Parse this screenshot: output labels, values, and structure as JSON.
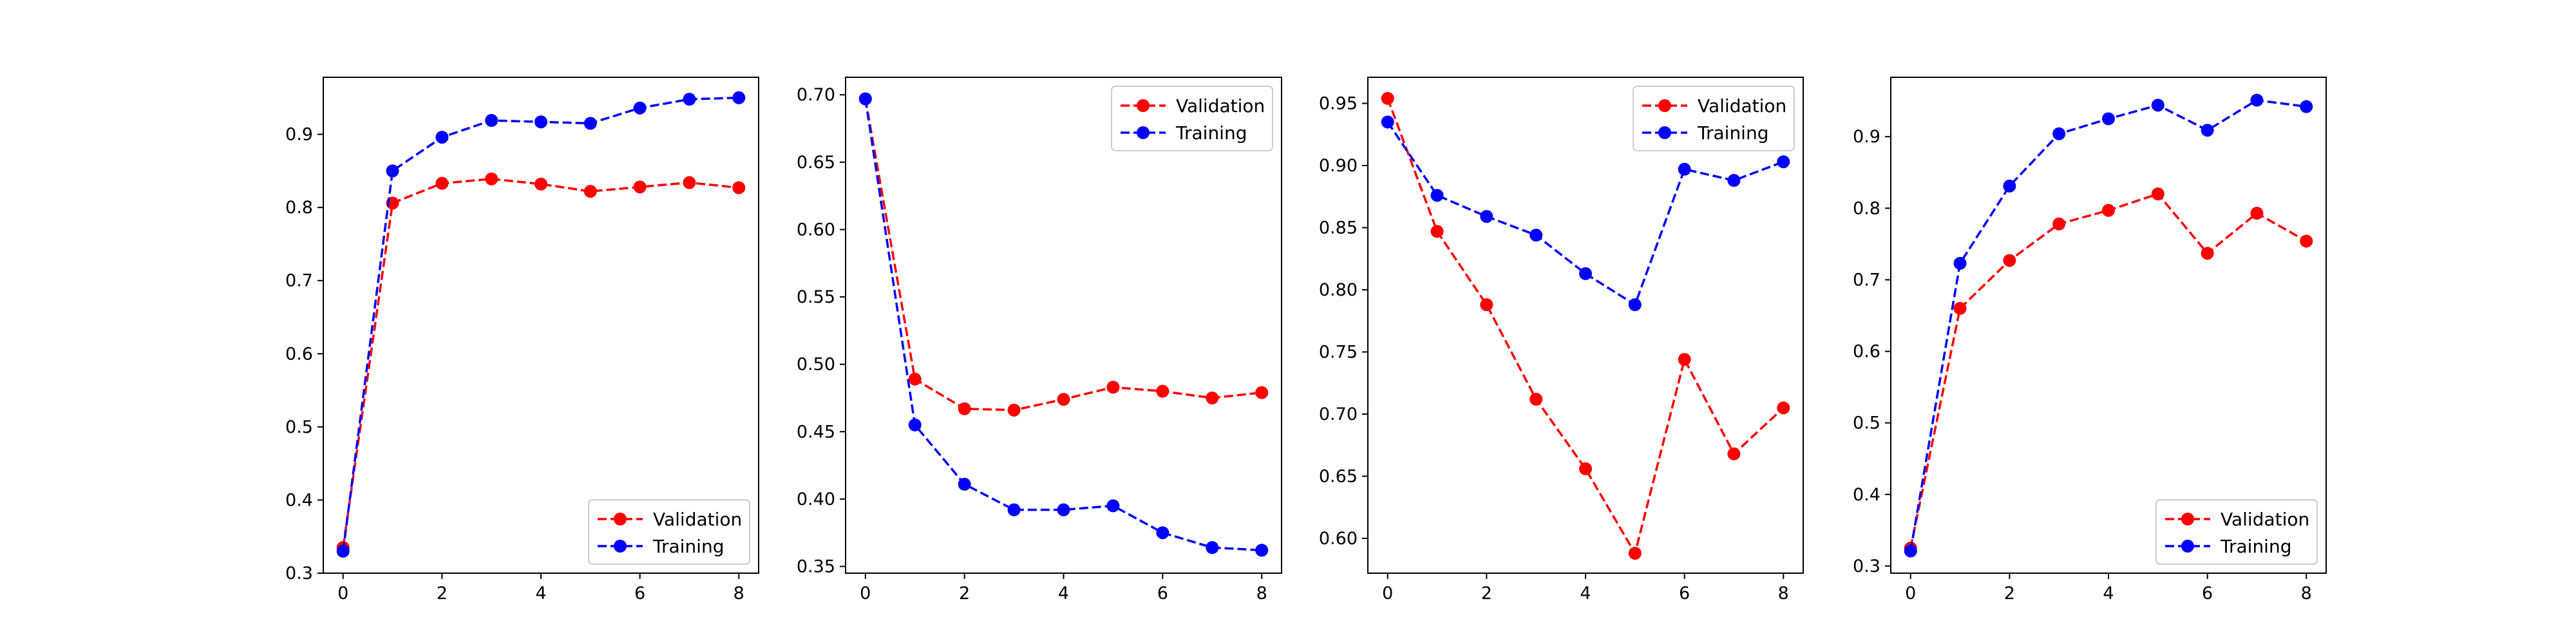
{
  "colors": {
    "validation": "#ff0000",
    "training": "#0000ff",
    "axis": "#000000",
    "background": "#ffffff"
  },
  "chart_data": [
    {
      "type": "line",
      "x": [
        0,
        1,
        2,
        3,
        4,
        5,
        6,
        7,
        8
      ],
      "xlim": [
        -0.4,
        8.4
      ],
      "ylim": [
        0.3,
        0.978
      ],
      "xticks": [
        0,
        2,
        4,
        6,
        8
      ],
      "yticks": [
        0.3,
        0.4,
        0.5,
        0.6,
        0.7,
        0.8,
        0.9
      ],
      "ytick_labels": [
        "0.3",
        "0.4",
        "0.5",
        "0.6",
        "0.7",
        "0.8",
        "0.9"
      ],
      "legend_position": "lower-right",
      "series": [
        {
          "name": "Validation",
          "color": "#ff0000",
          "values": [
            0.335,
            0.806,
            0.833,
            0.839,
            0.832,
            0.822,
            0.828,
            0.834,
            0.827
          ]
        },
        {
          "name": "Training",
          "color": "#0000ff",
          "values": [
            0.33,
            0.85,
            0.896,
            0.919,
            0.917,
            0.915,
            0.936,
            0.948,
            0.95
          ]
        }
      ]
    },
    {
      "type": "line",
      "x": [
        0,
        1,
        2,
        3,
        4,
        5,
        6,
        7,
        8
      ],
      "xlim": [
        -0.4,
        8.4
      ],
      "ylim": [
        0.345,
        0.713
      ],
      "xticks": [
        0,
        2,
        4,
        6,
        8
      ],
      "yticks": [
        0.35,
        0.4,
        0.45,
        0.5,
        0.55,
        0.6,
        0.65,
        0.7
      ],
      "ytick_labels": [
        "0.35",
        "0.40",
        "0.45",
        "0.50",
        "0.55",
        "0.60",
        "0.65",
        "0.70"
      ],
      "legend_position": "upper-right",
      "series": [
        {
          "name": "Validation",
          "color": "#ff0000",
          "values": [
            0.697,
            0.489,
            0.467,
            0.466,
            0.474,
            0.483,
            0.48,
            0.475,
            0.479
          ]
        },
        {
          "name": "Training",
          "color": "#0000ff",
          "values": [
            0.697,
            0.455,
            0.411,
            0.392,
            0.392,
            0.395,
            0.375,
            0.364,
            0.362
          ]
        }
      ]
    },
    {
      "type": "line",
      "x": [
        0,
        1,
        2,
        3,
        4,
        5,
        6,
        7,
        8
      ],
      "xlim": [
        -0.4,
        8.4
      ],
      "ylim": [
        0.572,
        0.971
      ],
      "xticks": [
        0,
        2,
        4,
        6,
        8
      ],
      "yticks": [
        0.6,
        0.65,
        0.7,
        0.75,
        0.8,
        0.85,
        0.9,
        0.95
      ],
      "ytick_labels": [
        "0.60",
        "0.65",
        "0.70",
        "0.75",
        "0.80",
        "0.85",
        "0.90",
        "0.95"
      ],
      "legend_position": "upper-right",
      "series": [
        {
          "name": "Validation",
          "color": "#ff0000",
          "values": [
            0.954,
            0.847,
            0.788,
            0.712,
            0.656,
            0.588,
            0.744,
            0.668,
            0.705
          ]
        },
        {
          "name": "Training",
          "color": "#0000ff",
          "values": [
            0.935,
            0.876,
            0.859,
            0.844,
            0.813,
            0.788,
            0.897,
            0.888,
            0.903
          ]
        }
      ]
    },
    {
      "type": "line",
      "x": [
        0,
        1,
        2,
        3,
        4,
        5,
        6,
        7,
        8
      ],
      "xlim": [
        -0.4,
        8.4
      ],
      "ylim": [
        0.29,
        0.983
      ],
      "xticks": [
        0,
        2,
        4,
        6,
        8
      ],
      "yticks": [
        0.3,
        0.4,
        0.5,
        0.6,
        0.7,
        0.8,
        0.9
      ],
      "ytick_labels": [
        "0.3",
        "0.4",
        "0.5",
        "0.6",
        "0.7",
        "0.8",
        "0.9"
      ],
      "legend_position": "lower-right",
      "series": [
        {
          "name": "Validation",
          "color": "#ff0000",
          "values": [
            0.325,
            0.66,
            0.727,
            0.778,
            0.797,
            0.82,
            0.737,
            0.793,
            0.754
          ]
        },
        {
          "name": "Training",
          "color": "#0000ff",
          "values": [
            0.321,
            0.723,
            0.831,
            0.904,
            0.925,
            0.944,
            0.909,
            0.951,
            0.942
          ]
        }
      ]
    }
  ]
}
